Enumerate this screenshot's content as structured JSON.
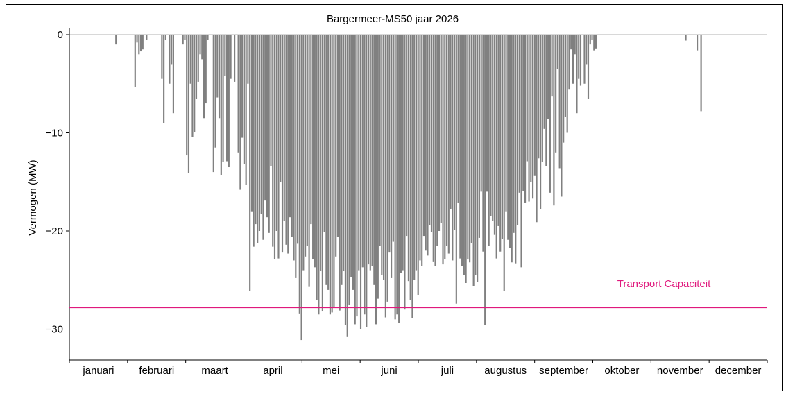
{
  "chart_data": {
    "type": "bar",
    "title": "Bargermeer-MS50 jaar 2026",
    "xlabel": "",
    "ylabel": "Vermogen (MW)",
    "ylim": [
      -33,
      0
    ],
    "yticks": [
      0,
      -10,
      -20,
      -30
    ],
    "months": [
      "januari",
      "februari",
      "maart",
      "april",
      "mei",
      "juni",
      "juli",
      "augustus",
      "september",
      "oktober",
      "november",
      "december"
    ],
    "grid": false,
    "bar_color": "#808080",
    "capacity_line": {
      "label": "Transport Capaciteit",
      "value": -27.8,
      "color": "#e0197d"
    },
    "series": [
      {
        "values_daily_min_mw": [
          0,
          0,
          0,
          0,
          0,
          0,
          0,
          0,
          0,
          0,
          0,
          0,
          0,
          0,
          0,
          0,
          0,
          0,
          0,
          0,
          0,
          0,
          0,
          0,
          -1.0,
          0,
          0,
          0,
          0,
          0,
          0,
          0,
          0,
          0,
          -5.3,
          -0.8,
          -2.0,
          -1.7,
          -1.5,
          0,
          -0.5,
          0,
          0,
          0,
          0,
          0,
          0,
          0,
          -4.5,
          -9.0,
          -0.5,
          0,
          -5.0,
          -3.0,
          -8.0,
          0,
          0,
          0,
          0,
          -1.0,
          -0.5,
          -12.3,
          -14.1,
          -5.0,
          -10.4,
          -9.9,
          -6.5,
          -4.8,
          -2.0,
          -2.5,
          -8.5,
          -7.0,
          -0.5,
          0,
          0,
          -14.0,
          -11.5,
          -6.4,
          -8.5,
          -14.3,
          -13.0,
          -4.2,
          -12.9,
          -13.5,
          -4.5,
          0,
          -4.8,
          0,
          -12.0,
          -15.8,
          -10.5,
          -13.2,
          -15.3,
          -5.0,
          -26.1,
          -18.0,
          -21.6,
          -19.3,
          -21.2,
          -20.0,
          -18.3,
          -20.9,
          -16.9,
          -18.6,
          -20.2,
          -13.4,
          -21.6,
          -22.9,
          -20.0,
          -22.8,
          -15.0,
          -22.2,
          -19.0,
          -21.4,
          -22.3,
          -18.6,
          -20.6,
          -23.0,
          -24.8,
          -21.3,
          -28.4,
          -31.1,
          -24.0,
          -22.6,
          -21.5,
          -25.7,
          -19.3,
          -22.9,
          -23.7,
          -27.0,
          -28.5,
          -24.1,
          -28.2,
          -20.1,
          -25.5,
          -26.0,
          -28.5,
          -28.3,
          -27.8,
          -22.6,
          -20.6,
          -28.1,
          -25.5,
          -24.1,
          -29.6,
          -30.8,
          -27.5,
          -24.7,
          -26.0,
          -29.5,
          -28.7,
          -24.0,
          -30.0,
          -23.7,
          -28.5,
          -29.8,
          -23.4,
          -24.0,
          -23.6,
          -25.5,
          -29.5,
          -26.9,
          -21.5,
          -24.5,
          -25.0,
          -28.8,
          -27.2,
          -22.2,
          -24.8,
          -21.1,
          -29.0,
          -28.5,
          -29.4,
          -24.3,
          -24.0,
          -28.0,
          -20.5,
          -25.1,
          -27.0,
          -28.9,
          -25.0,
          -24.0,
          -26.5,
          -23.0,
          -23.6,
          -20.5,
          -22.0,
          -22.5,
          -19.4,
          -20.1,
          -23.1,
          -23.6,
          -21.5,
          -20.0,
          -19.2,
          -23.4,
          -22.9,
          -21.5,
          -22.3,
          -17.8,
          -23.0,
          -19.9,
          -27.4,
          -17.1,
          -22.8,
          -23.6,
          -24.5,
          -25.3,
          -22.9,
          -23.2,
          -21.2,
          -25.6,
          -24.5,
          -25.2,
          -20.7,
          -16.0,
          -22.1,
          -29.6,
          -16.0,
          -21.5,
          -18.5,
          -19.0,
          -20.4,
          -22.8,
          -19.5,
          -22.1,
          -20.8,
          -26.1,
          -18.0,
          -20.9,
          -21.7,
          -23.2,
          -20.2,
          -23.3,
          -19.4,
          -16.1,
          -23.7,
          -15.9,
          -17.1,
          -12.9,
          -17.0,
          -15.0,
          -16.7,
          -14.4,
          -19.1,
          -12.6,
          -17.8,
          -13.0,
          -9.6,
          -13.4,
          -8.6,
          -16.1,
          -6.3,
          -17.4,
          -12.0,
          -3.5,
          -13.6,
          -16.5,
          -11.0,
          -8.4,
          -10.0,
          -5.6,
          -1.5,
          -5.0,
          -2.0,
          -8.0,
          -4.5,
          -5.2,
          0,
          -5.0,
          -3.0,
          -6.5,
          -1.0,
          -0.5,
          -1.6,
          -1.4,
          0,
          0,
          0,
          0,
          0,
          0,
          0,
          0,
          0,
          0,
          0,
          0,
          0,
          0,
          0,
          0,
          0,
          0,
          0,
          0,
          0,
          0,
          0,
          0,
          0,
          0,
          0,
          0,
          0,
          0,
          0,
          0,
          0,
          0,
          0,
          0,
          0,
          0,
          0,
          0,
          0,
          0,
          0,
          0,
          0,
          0,
          -0.6,
          0,
          0,
          0,
          0,
          0,
          -1.6,
          0,
          -7.8,
          0,
          0,
          0,
          0,
          0,
          0,
          0,
          0,
          0,
          0,
          0,
          0,
          0,
          0,
          0,
          0,
          0,
          0,
          0,
          0,
          0,
          0,
          0,
          0,
          0,
          0,
          0,
          0,
          0,
          0,
          0,
          0,
          0,
          0
        ]
      }
    ]
  }
}
